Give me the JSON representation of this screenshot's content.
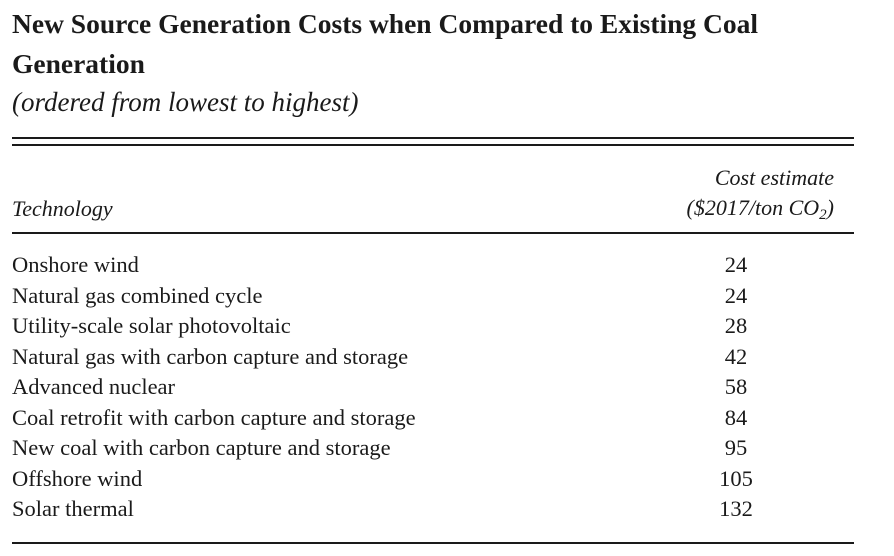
{
  "title": "New Source Generation Costs when Compared to Existing Coal Generation",
  "subtitle": "(ordered from lowest to highest)",
  "header": {
    "technology": "Technology",
    "cost_line1": "Cost estimate",
    "cost_line2_prefix": "($2017/ton CO",
    "cost_line2_sub": "2",
    "cost_line2_suffix": ")"
  },
  "rows": [
    {
      "technology": "Onshore wind",
      "cost": "24"
    },
    {
      "technology": "Natural gas combined cycle",
      "cost": "24"
    },
    {
      "technology": "Utility-scale solar photovoltaic",
      "cost": "28"
    },
    {
      "technology": "Natural gas with carbon capture and storage",
      "cost": "42"
    },
    {
      "technology": "Advanced nuclear",
      "cost": "58"
    },
    {
      "technology": "Coal retrofit with carbon capture and storage",
      "cost": "84"
    },
    {
      "technology": "New coal with carbon capture and storage",
      "cost": "95"
    },
    {
      "technology": "Offshore wind",
      "cost": "105"
    },
    {
      "technology": "Solar thermal",
      "cost": "132"
    }
  ]
}
